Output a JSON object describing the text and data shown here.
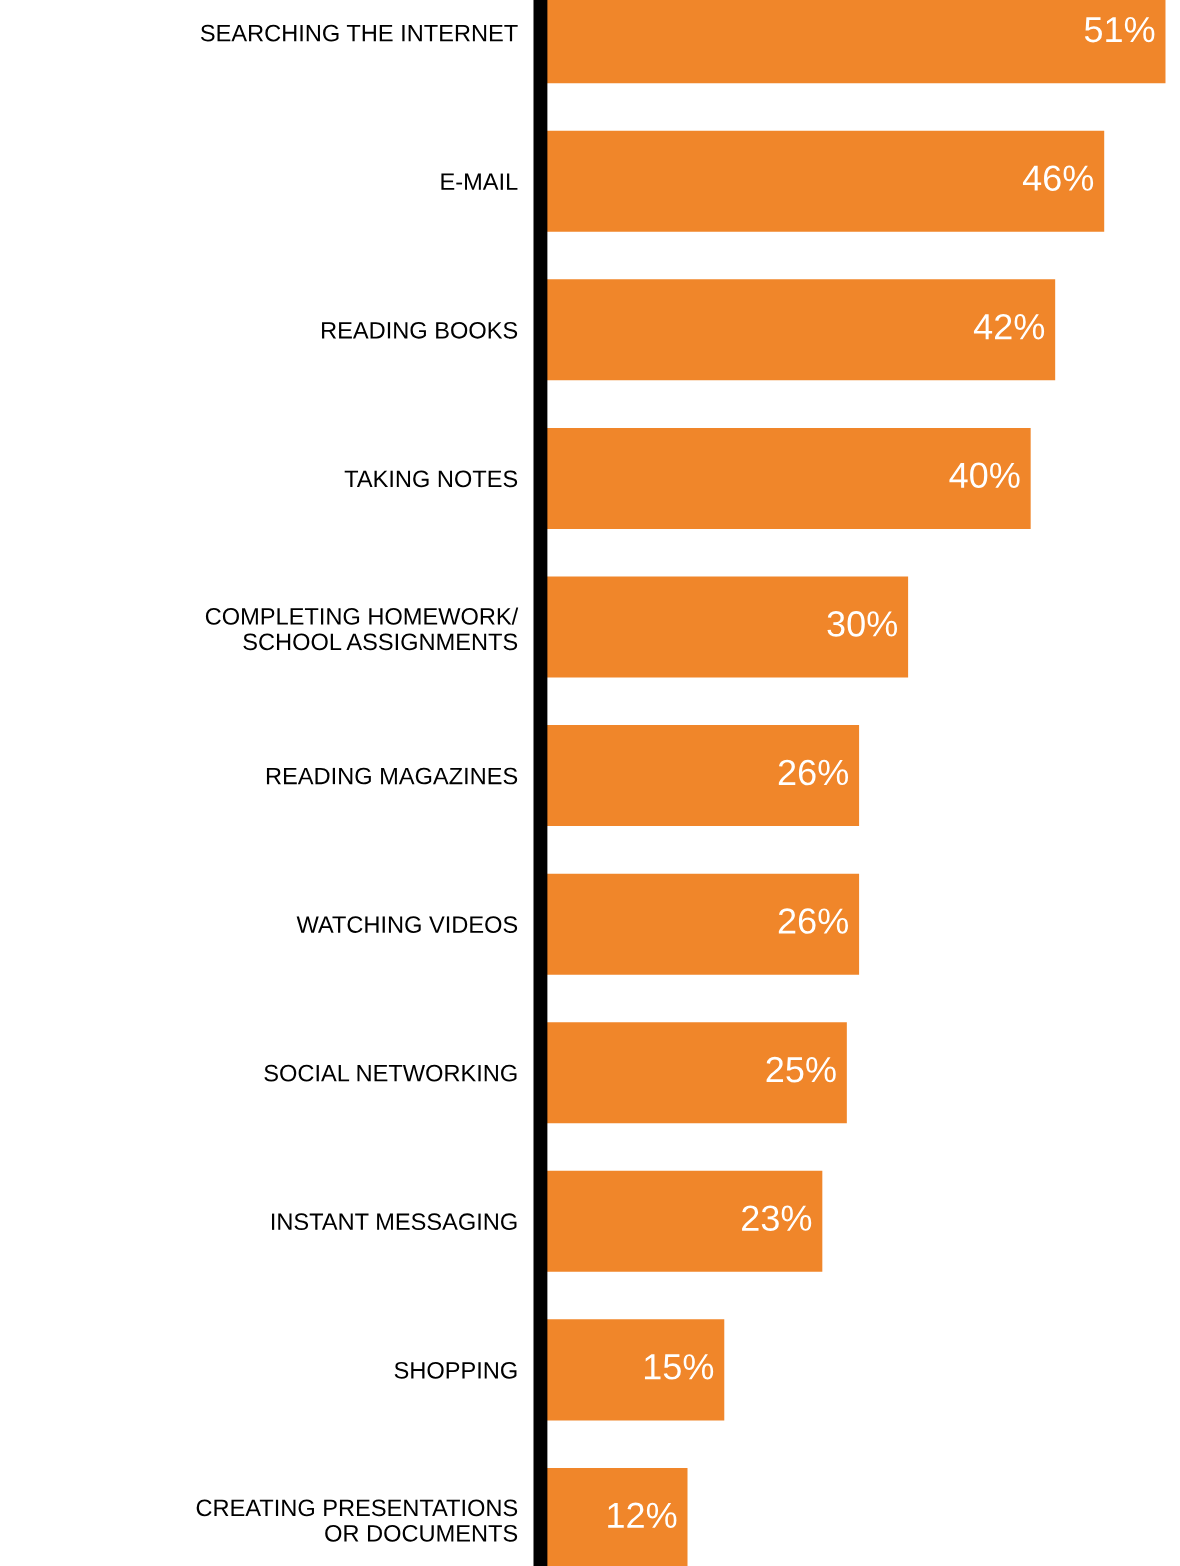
{
  "chart_data": {
    "type": "bar",
    "orientation": "horizontal",
    "categories": [
      "SEARCHING THE INTERNET",
      "E-MAIL",
      "READING BOOKS",
      "TAKING NOTES",
      "COMPLETING HOMEWORK/\nSCHOOL ASSIGNMENTS",
      "READING MAGAZINES",
      "WATCHING VIDEOS",
      "SOCIAL NETWORKING",
      "INSTANT MESSAGING",
      "SHOPPING",
      "CREATING PRESENTATIONS\nOR DOCUMENTS"
    ],
    "values": [
      51,
      46,
      42,
      40,
      30,
      26,
      26,
      25,
      23,
      15,
      12
    ],
    "value_labels": [
      "51%",
      "46%",
      "42%",
      "40%",
      "30%",
      "26%",
      "26%",
      "25%",
      "23%",
      "15%",
      "12%"
    ],
    "color": "#f0862a",
    "tick_labels": "y",
    "grid": false,
    "legend": false
  }
}
